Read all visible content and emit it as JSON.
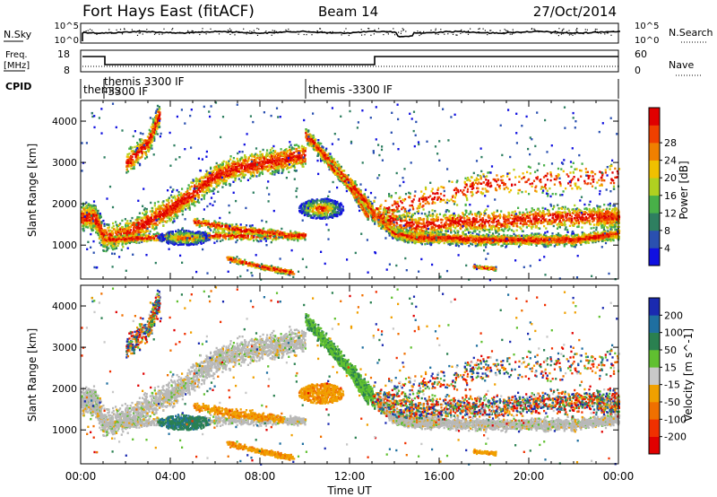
{
  "header": {
    "title": "Fort Hays East (fitACF)",
    "beam": "Beam 14",
    "date": "27/Oct/2014"
  },
  "summary_panel": {
    "nsky_label": "N.Sky",
    "nsearch_label": "N.Search",
    "noise_tick_top_left": "10^5",
    "noise_tick_bottom_left": "10^0",
    "noise_tick_top_right": "10^5",
    "noise_tick_bottom_right": "10^0",
    "freq_label_line1": "Freq.",
    "freq_label_line2": "[MHz]",
    "freq_tick_top": "18",
    "freq_tick_bottom": "8",
    "nave_label": "Nave",
    "nave_tick_top": "60",
    "nave_tick_bottom": "0",
    "cpid_label": "CPID"
  },
  "cpid_segments": [
    {
      "start": 0.0,
      "end": 1.0,
      "lines": [
        "themis"
      ]
    },
    {
      "start": 1.0,
      "end": 10.0,
      "lines": [
        "themis 3300 IF",
        "-3300 IF"
      ]
    },
    {
      "start": 10.0,
      "end": 24.0,
      "lines": [
        "themis -3300 IF"
      ]
    }
  ],
  "chart_data": [
    {
      "type": "heatmap",
      "name": "power",
      "ylabel": "Slant Range [km]",
      "y_ticks": [
        "1000",
        "2000",
        "3000",
        "4000"
      ],
      "y_values": [
        1000,
        2000,
        3000,
        4000
      ],
      "ylim": [
        180,
        4500
      ],
      "xlim": [
        0,
        24
      ],
      "colorbar_label": "Power [dB]",
      "colorbar_ticks": [
        "4",
        "8",
        "12",
        "16",
        "20",
        "24",
        "28"
      ],
      "colorbar_values": [
        4,
        8,
        12,
        16,
        20,
        24,
        28
      ],
      "colorbar_range": [
        0,
        32
      ]
    },
    {
      "type": "heatmap",
      "name": "velocity",
      "ylabel": "Slant Range [km]",
      "y_ticks": [
        "1000",
        "2000",
        "3000",
        "4000"
      ],
      "y_values": [
        1000,
        2000,
        3000,
        4000
      ],
      "ylim": [
        180,
        4500
      ],
      "xlim": [
        0,
        24
      ],
      "colorbar_label": "Velocity [m s^-1]",
      "colorbar_ticks": [
        "200",
        "100",
        "50",
        "15",
        "-15",
        "-50",
        "-100",
        "-200"
      ],
      "xlabel": "Time UT",
      "x_ticks": [
        "00:00",
        "04:00",
        "08:00",
        "12:00",
        "16:00",
        "20:00",
        "00:00"
      ],
      "x_values": [
        0,
        4,
        8,
        12,
        16,
        20,
        24
      ]
    }
  ],
  "colors": {
    "power_scale": [
      "#1010e0",
      "#2a50b0",
      "#2e7f60",
      "#48b048",
      "#b0d020",
      "#f0c000",
      "#f08000",
      "#f04000",
      "#e00000"
    ],
    "velocity_scale": [
      "#1a2ab0",
      "#1f6fa0",
      "#2a8050",
      "#60c030",
      "#c8c8c8",
      "#f0a000",
      "#f07000",
      "#f03000",
      "#e00000"
    ],
    "ground_scatter": "#b8b8b8"
  }
}
